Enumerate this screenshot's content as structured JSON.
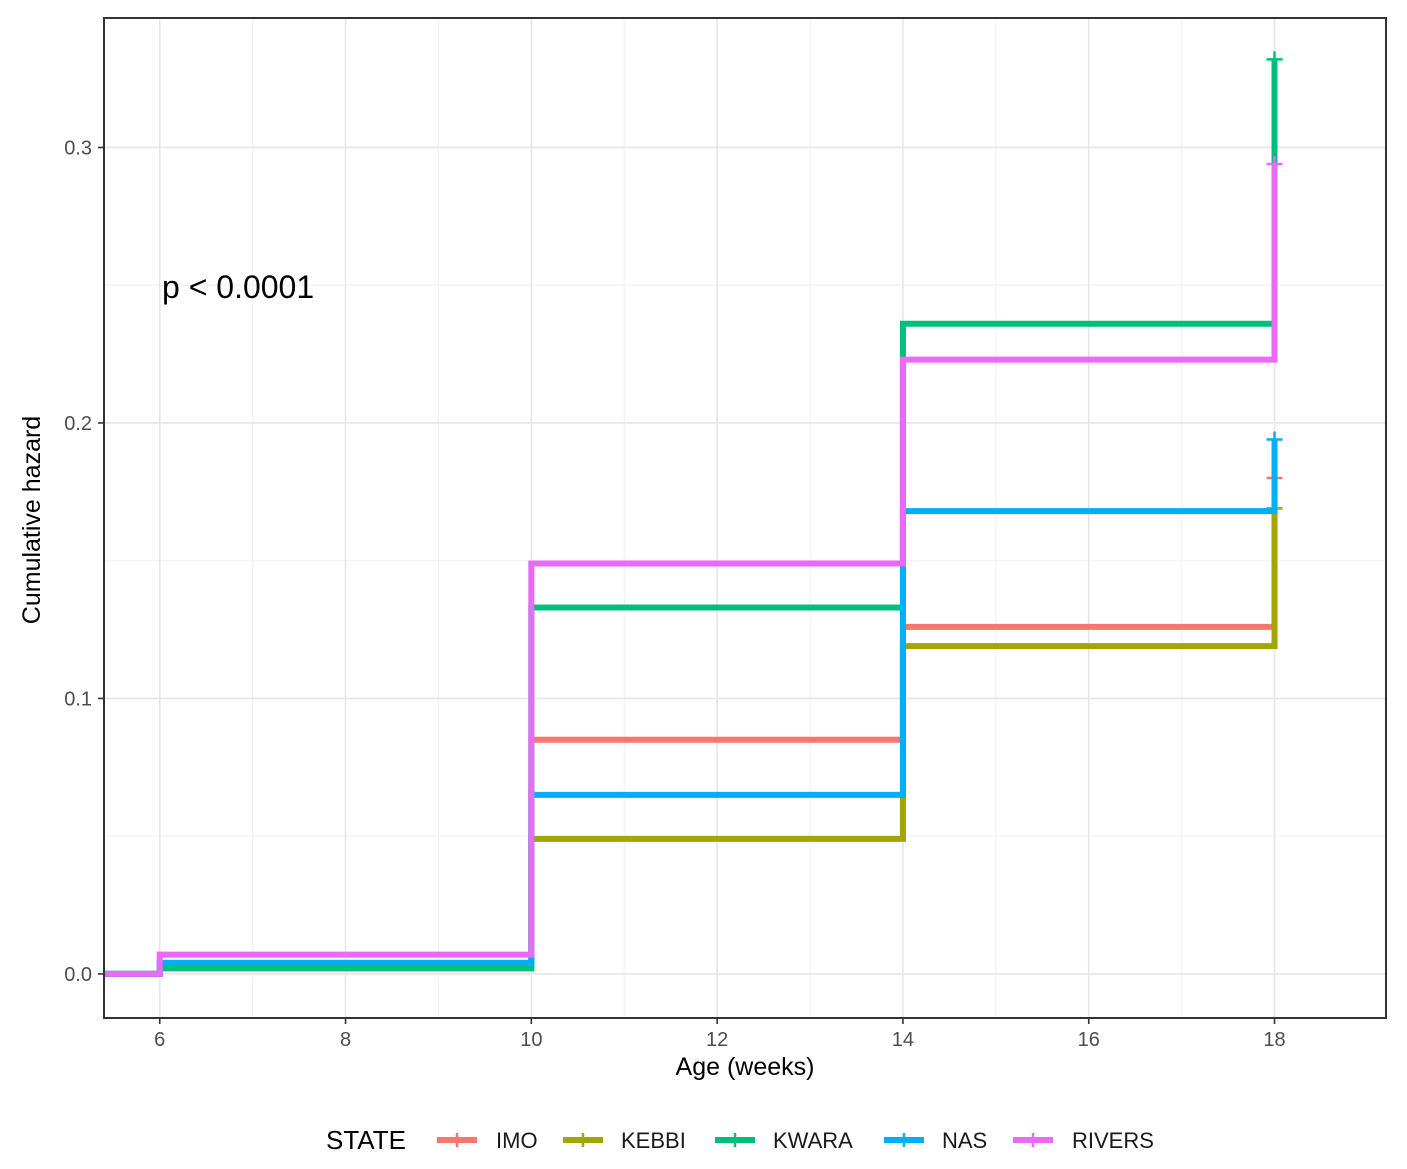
{
  "chart_data": {
    "type": "line",
    "step": true,
    "annotation": "p < 0.0001",
    "xlabel": "Age (weeks)",
    "ylabel": "Cumulative hazard",
    "xlim": [
      5.4,
      19.2
    ],
    "ylim": [
      -0.016,
      0.347
    ],
    "x_ticks": [
      6,
      8,
      10,
      12,
      14,
      16,
      18
    ],
    "x_tick_labels": [
      "6",
      "8",
      "10",
      "12",
      "14",
      "16",
      "18"
    ],
    "y_ticks": [
      0.0,
      0.1,
      0.2,
      0.3
    ],
    "y_tick_labels": [
      "0.0",
      "0.1",
      "0.2",
      "0.3"
    ],
    "grid": true,
    "legend": {
      "title": "STATE",
      "position": "bottom"
    },
    "series": [
      {
        "name": "IMO",
        "color": "#F8766D",
        "points": [
          [
            5.4,
            0.0
          ],
          [
            6,
            0.004
          ],
          [
            10,
            0.085
          ],
          [
            14,
            0.126
          ],
          [
            18,
            0.18
          ]
        ],
        "censor": [
          18,
          0.18
        ]
      },
      {
        "name": "KEBBI",
        "color": "#A3A500",
        "points": [
          [
            5.4,
            0.0
          ],
          [
            6,
            0.003
          ],
          [
            10,
            0.049
          ],
          [
            14,
            0.119
          ],
          [
            18,
            0.169
          ]
        ],
        "censor": [
          18,
          0.169
        ]
      },
      {
        "name": "KWARA",
        "color": "#00BF7D",
        "points": [
          [
            5.4,
            0.0
          ],
          [
            6,
            0.002
          ],
          [
            10,
            0.133
          ],
          [
            14,
            0.236
          ],
          [
            18,
            0.332
          ]
        ],
        "censor": [
          18,
          0.332
        ]
      },
      {
        "name": "NAS",
        "color": "#00B0F6",
        "points": [
          [
            5.4,
            0.0
          ],
          [
            6,
            0.004
          ],
          [
            10,
            0.065
          ],
          [
            14,
            0.168
          ],
          [
            18,
            0.194
          ]
        ],
        "censor": [
          18,
          0.194
        ]
      },
      {
        "name": "RIVERS",
        "color": "#E76BF3",
        "points": [
          [
            5.4,
            0.0
          ],
          [
            6,
            0.007
          ],
          [
            10,
            0.149
          ],
          [
            14,
            0.223
          ],
          [
            18,
            0.294
          ]
        ],
        "censor": [
          18,
          0.294
        ]
      }
    ]
  }
}
